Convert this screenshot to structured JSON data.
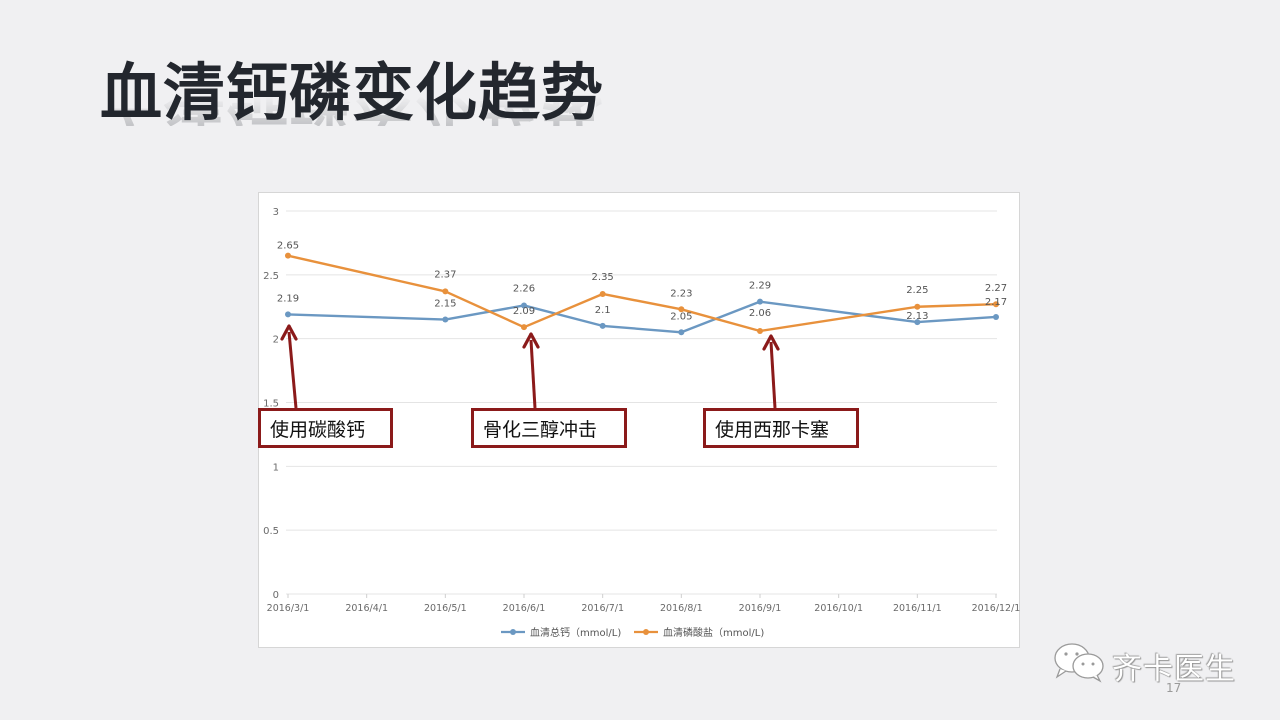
{
  "slide": {
    "title": "血清钙磷变化趋势",
    "page_number": "17",
    "watermark": "齐卡医生"
  },
  "annotations": [
    {
      "label": "使用碳酸钙",
      "target_category": "2016/3/1",
      "target_series": "血清总钙（mmol/L)"
    },
    {
      "label": "骨化三醇冲击",
      "target_category": "2016/6/1",
      "target_series": "血清磷酸盐（mmol/L)"
    },
    {
      "label": "使用西那卡塞",
      "target_category": "2016/9/1",
      "target_series": "血清磷酸盐（mmol/L)"
    }
  ],
  "colors": {
    "calcium": "#6b98c2",
    "phosphate": "#e8913c",
    "annotation": "#8b1a1a",
    "grid": "#e4e4e4",
    "axis_text": "#6a6a6a"
  },
  "chart_data": {
    "type": "line",
    "title": "",
    "xlabel": "",
    "ylabel": "",
    "ylim": [
      0,
      3
    ],
    "yticks": [
      "0",
      "0.5",
      "1",
      "1.5",
      "2",
      "2.5",
      "3"
    ],
    "grid": true,
    "legend_position": "bottom",
    "categories": [
      "2016/3/1",
      "2016/4/1",
      "2016/5/1",
      "2016/6/1",
      "2016/7/1",
      "2016/8/1",
      "2016/9/1",
      "2016/10/1",
      "2016/11/1",
      "2016/12/1"
    ],
    "series": [
      {
        "name": "血清总钙（mmol/L)",
        "x": [
          "2016/3/1",
          "2016/5/1",
          "2016/6/1",
          "2016/7/1",
          "2016/8/1",
          "2016/9/1",
          "2016/11/1",
          "2016/12/1"
        ],
        "values": [
          2.19,
          2.15,
          2.26,
          2.1,
          2.05,
          2.29,
          2.13,
          2.17
        ]
      },
      {
        "name": "血清磷酸盐（mmol/L)",
        "x": [
          "2016/3/1",
          "2016/5/1",
          "2016/6/1",
          "2016/7/1",
          "2016/8/1",
          "2016/9/1",
          "2016/11/1",
          "2016/12/1"
        ],
        "values": [
          2.65,
          2.37,
          2.09,
          2.35,
          2.23,
          2.06,
          2.25,
          2.27
        ]
      }
    ]
  }
}
